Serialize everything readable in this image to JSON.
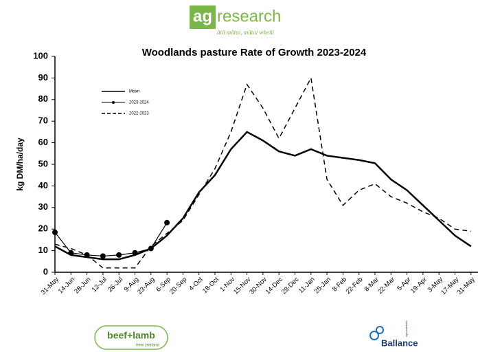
{
  "header": {
    "logo_ag": "ag",
    "logo_research": "research",
    "tagline": "ātā mātai, mātai whetū"
  },
  "footer": {
    "left_logo": "beef+lamb",
    "left_sub": "new zealand",
    "right_logo": "Ballance",
    "right_sub": "agri-nutrients"
  },
  "chart_data": {
    "type": "line",
    "title": "Woodlands pasture Rate of Growth 2023-2024",
    "y_label": "kg DM/ha/day",
    "categories": [
      "31-May",
      "14-Jun",
      "28-Jun",
      "12-Jul",
      "26-Jul",
      "9-Aug",
      "23-Aug",
      "6-Sep",
      "20-Sep",
      "4-Oct",
      "18-Oct",
      "1-Nov",
      "15-Nov",
      "30-Nov",
      "14-Dec",
      "28-Dec",
      "11-Jan",
      "25-Jan",
      "8-Feb",
      "22-Feb",
      "8-Mar",
      "22-Mar",
      "5-Apr",
      "19-Apr",
      "3-May",
      "17-May",
      "31-May"
    ],
    "ylim": [
      0,
      100
    ],
    "yticks": [
      0,
      10,
      20,
      30,
      40,
      50,
      60,
      70,
      80,
      90,
      100
    ],
    "grid": false,
    "legend": "upper left",
    "series": [
      {
        "name": "Mean",
        "color": "#000000",
        "line_style": "solid",
        "markers": false,
        "values": [
          12,
          8,
          7,
          6,
          6,
          8,
          11,
          17,
          25,
          37,
          45,
          57,
          65,
          61,
          56,
          54,
          57,
          54,
          53,
          52,
          50.5,
          43,
          38,
          31,
          24,
          17,
          12
        ]
      },
      {
        "name": "2023-2024",
        "color": "#000000",
        "line_style": "solid",
        "markers": true,
        "values": [
          18.5,
          9,
          8,
          7.5,
          8,
          9,
          11,
          23,
          null,
          null,
          null,
          null,
          null,
          null,
          null,
          null,
          null,
          null,
          null,
          null,
          null,
          null,
          null,
          null,
          null,
          null,
          null
        ]
      },
      {
        "name": "2022-2023",
        "color": "#000000",
        "line_style": "dashed",
        "markers": false,
        "values": [
          13,
          11,
          8,
          2,
          2,
          2,
          12,
          18,
          24,
          36,
          48,
          65,
          87,
          76,
          62,
          76,
          90,
          43,
          31,
          38,
          41,
          35,
          32,
          28,
          25,
          20,
          19
        ]
      }
    ]
  }
}
